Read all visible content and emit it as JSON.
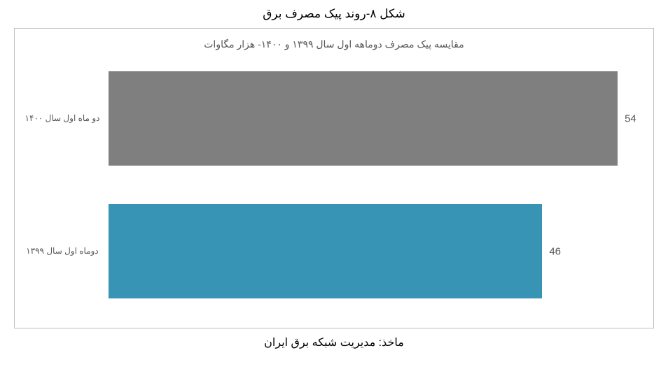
{
  "figure_title": "شکل ۸-روند پیک مصرف برق",
  "chart": {
    "type": "bar-horizontal",
    "subtitle": "مقایسه پیک مصرف دوماهه اول سال ۱۳۹۹ و ۱۴۰۰- هزار مگاوات",
    "background_color": "#ffffff",
    "border_color": "#bfbfbf",
    "label_color": "#595959",
    "label_fontsize": 12,
    "value_fontsize": 15,
    "xmax": 56,
    "bars": [
      {
        "label": "دو ماه اول سال ۱۴۰۰",
        "value": 54,
        "color": "#7f7f7f"
      },
      {
        "label": "دوماه اول سال ۱۳۹۹",
        "value": 46,
        "color": "#3894b4"
      }
    ]
  },
  "source": "ماخذ: مدیریت شبکه برق ایران"
}
